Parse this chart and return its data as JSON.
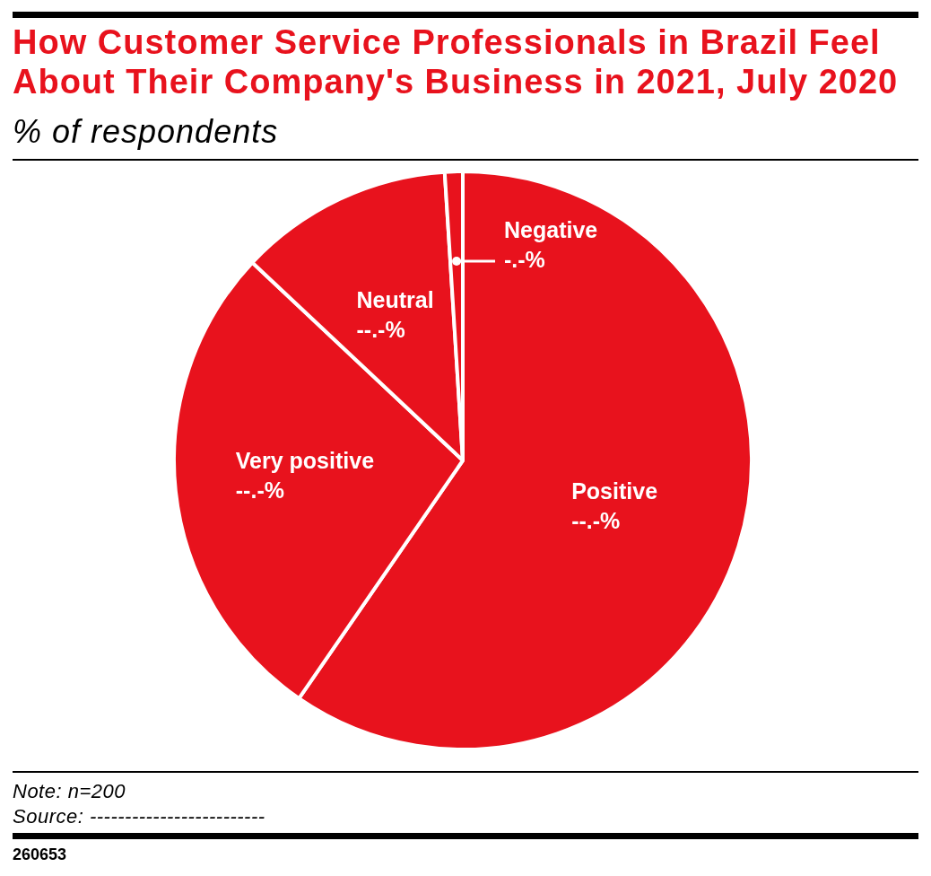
{
  "chart_data": {
    "type": "pie",
    "title": "How Customer Service Professionals in Brazil Feel About Their Company's Business in 2021, July 2020",
    "subtitle": "% of respondents",
    "categories": [
      "Positive",
      "Very positive",
      "Neutral",
      "Negative"
    ],
    "values": [
      59.6,
      27.4,
      12.0,
      1.0
    ],
    "colors": [
      "#e8121d",
      "#e8121d",
      "#e8121d",
      "#e8121d"
    ],
    "value_labels": [
      "--.-%",
      "--.-%",
      "--.-%",
      "-.-%"
    ],
    "annotations": [
      "Note: n=200",
      "Source: -------------------------",
      "260653"
    ]
  }
}
